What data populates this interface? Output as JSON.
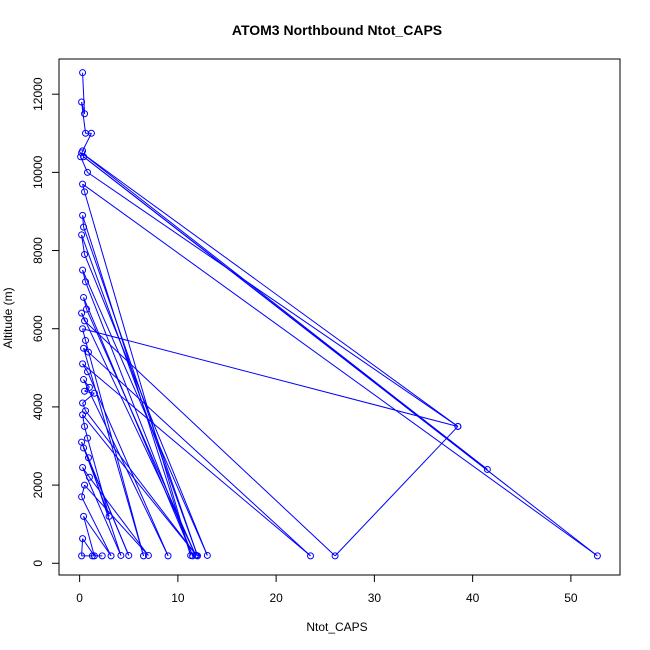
{
  "chart_data": {
    "type": "line",
    "title": "ATOM3 Northbound Ntot_CAPS",
    "xlabel": "Ntot_CAPS",
    "ylabel": "Altitude (m)",
    "xlim": [
      -2.1,
      55
    ],
    "ylim": [
      -300,
      12900
    ],
    "xticks": [
      0,
      10,
      20,
      30,
      40,
      50
    ],
    "yticks": [
      0,
      2000,
      4000,
      6000,
      8000,
      10000,
      12000
    ],
    "xtick_labels": [
      "0",
      "10",
      "20",
      "30",
      "40",
      "50"
    ],
    "ytick_labels": [
      "0",
      "2000",
      "4000",
      "6000",
      "8000",
      "10000",
      "12000"
    ],
    "marker": "open-circle",
    "series": [
      {
        "color": "#0000ff",
        "points": [
          [
            0.3,
            12550
          ],
          [
            0.5,
            11500
          ],
          [
            0.2,
            11800
          ],
          [
            0.6,
            11000
          ],
          [
            1.2,
            11000
          ],
          [
            0.3,
            10550
          ],
          [
            0.1,
            10400
          ],
          [
            0.8,
            10000
          ],
          [
            38.5,
            3500
          ],
          [
            0.2,
            10500
          ],
          [
            41.5,
            2400
          ],
          [
            0.4,
            10400
          ],
          [
            52.7,
            190
          ],
          [
            0.3,
            9700
          ],
          [
            0.5,
            9500
          ],
          [
            11.3,
            200
          ],
          [
            0.3,
            8900
          ],
          [
            0.4,
            8600
          ],
          [
            12.0,
            190
          ],
          [
            0.2,
            8400
          ],
          [
            0.5,
            7900
          ],
          [
            13.0,
            200
          ],
          [
            0.3,
            7500
          ],
          [
            0.6,
            7200
          ],
          [
            11.5,
            190
          ],
          [
            0.4,
            6800
          ],
          [
            0.7,
            6500
          ],
          [
            11.8,
            210
          ],
          [
            0.2,
            6400
          ],
          [
            0.5,
            6200
          ],
          [
            26.0,
            190
          ],
          [
            38.5,
            3500
          ],
          [
            0.3,
            6000
          ],
          [
            0.6,
            5700
          ],
          [
            6.5,
            190
          ],
          [
            0.4,
            5500
          ],
          [
            0.9,
            5400
          ],
          [
            23.5,
            190
          ],
          [
            0.3,
            5100
          ],
          [
            0.8,
            4900
          ],
          [
            9.0,
            190
          ],
          [
            0.4,
            4700
          ],
          [
            1.0,
            4500
          ],
          [
            0.5,
            4400
          ],
          [
            1.5,
            4350
          ],
          [
            0.3,
            4100
          ],
          [
            0.6,
            3900
          ],
          [
            11.9,
            200
          ],
          [
            0.3,
            3800
          ],
          [
            0.5,
            3500
          ],
          [
            0.8,
            3200
          ],
          [
            3.0,
            1200
          ],
          [
            0.2,
            3100
          ],
          [
            5.0,
            200
          ],
          [
            0.4,
            2950
          ],
          [
            0.9,
            2700
          ],
          [
            4.2,
            200
          ],
          [
            0.3,
            2450
          ],
          [
            1.0,
            2200
          ],
          [
            7.0,
            200
          ],
          [
            0.5,
            2000
          ],
          [
            0.2,
            1700
          ],
          [
            3.2,
            190
          ],
          [
            0.4,
            1200
          ],
          [
            1.5,
            190
          ],
          [
            0.3,
            630
          ],
          [
            0.2,
            190
          ],
          [
            1.3,
            190
          ],
          [
            2.3,
            190
          ]
        ]
      }
    ]
  }
}
